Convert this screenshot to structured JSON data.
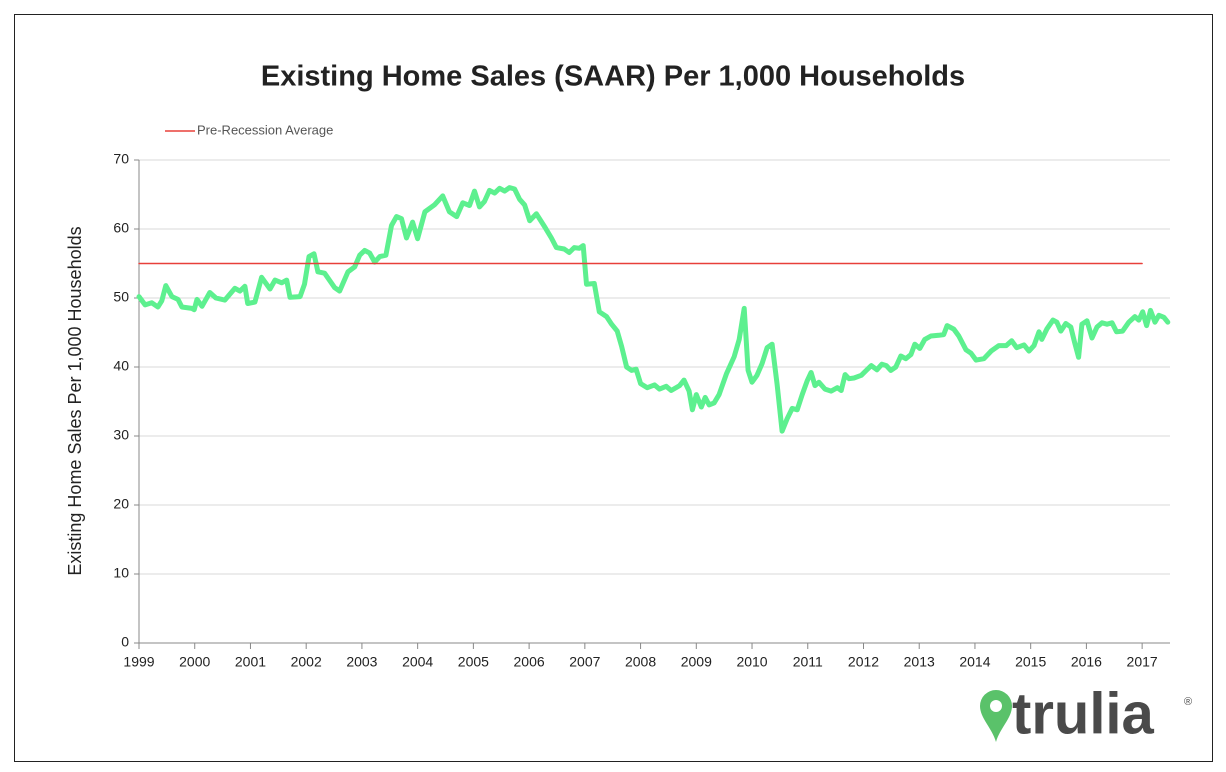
{
  "chart_data": {
    "type": "line",
    "title": "Existing Home Sales (SAAR) Per 1,000 Households",
    "y_label": "Existing Home Sales Per 1,000 Households",
    "xlim": [
      1999,
      2017.5
    ],
    "xticks": [
      1999,
      2000,
      2001,
      2002,
      2003,
      2004,
      2005,
      2006,
      2007,
      2008,
      2009,
      2010,
      2011,
      2012,
      2013,
      2014,
      2015,
      2016,
      2017
    ],
    "ylim": [
      0,
      70
    ],
    "yticks": [
      0,
      10,
      20,
      30,
      40,
      50,
      60,
      70
    ],
    "grid": true,
    "legend": "top-left",
    "series": [
      {
        "name": "Pre-Recession Average",
        "color": "#e8403a",
        "width": 1.5,
        "x": [
          1999,
          2017
        ],
        "values": [
          55,
          55
        ]
      },
      {
        "color": "#5df08f",
        "width": 5,
        "x": [
          1999.0,
          1999.11,
          1999.23,
          1999.34,
          1999.41,
          1999.48,
          1999.59,
          1999.7,
          1999.77,
          1999.95,
          1999.99,
          2000.04,
          2000.13,
          2000.27,
          2000.38,
          2000.54,
          2000.72,
          2000.81,
          2000.9,
          2000.95,
          2001.08,
          2001.2,
          2001.35,
          2001.44,
          2001.56,
          2001.65,
          2001.71,
          2001.89,
          2001.97,
          2002.05,
          2002.14,
          2002.21,
          2002.33,
          2002.51,
          2002.6,
          2002.75,
          2002.87,
          2002.96,
          2003.05,
          2003.14,
          2003.23,
          2003.32,
          2003.43,
          2003.53,
          2003.62,
          2003.71,
          2003.8,
          2003.91,
          2004.0,
          2004.13,
          2004.3,
          2004.45,
          2004.57,
          2004.7,
          2004.81,
          2004.93,
          2005.02,
          2005.11,
          2005.2,
          2005.29,
          2005.38,
          2005.47,
          2005.56,
          2005.65,
          2005.74,
          2005.83,
          2005.92,
          2006.01,
          2006.13,
          2006.28,
          2006.4,
          2006.49,
          2006.63,
          2006.72,
          2006.81,
          2006.9,
          2006.97,
          2007.03,
          2007.17,
          2007.26,
          2007.39,
          2007.48,
          2007.58,
          2007.66,
          2007.75,
          2007.84,
          2007.92,
          2008.0,
          2008.12,
          2008.25,
          2008.34,
          2008.46,
          2008.55,
          2008.7,
          2008.78,
          2008.87,
          2008.93,
          2009.0,
          2009.09,
          2009.16,
          2009.23,
          2009.32,
          2009.41,
          2009.54,
          2009.68,
          2009.77,
          2009.86,
          2009.93,
          2010.0,
          2010.09,
          2010.18,
          2010.27,
          2010.36,
          2010.45,
          2010.54,
          2010.63,
          2010.72,
          2010.81,
          2010.9,
          2010.99,
          2011.06,
          2011.13,
          2011.2,
          2011.31,
          2011.42,
          2011.53,
          2011.6,
          2011.67,
          2011.74,
          2011.83,
          2011.96,
          2012.05,
          2012.14,
          2012.24,
          2012.33,
          2012.41,
          2012.49,
          2012.58,
          2012.67,
          2012.76,
          2012.85,
          2012.92,
          2013.01,
          2013.1,
          2013.21,
          2013.35,
          2013.44,
          2013.5,
          2013.62,
          2013.71,
          2013.84,
          2013.93,
          2014.02,
          2014.16,
          2014.29,
          2014.43,
          2014.56,
          2014.66,
          2014.75,
          2014.88,
          2014.97,
          2015.06,
          2015.15,
          2015.2,
          2015.29,
          2015.4,
          2015.47,
          2015.54,
          2015.63,
          2015.72,
          2015.79,
          2015.86,
          2015.92,
          2016.01,
          2016.1,
          2016.19,
          2016.28,
          2016.37,
          2016.46,
          2016.54,
          2016.65,
          2016.76,
          2016.87,
          2016.94,
          2017.01,
          2017.08,
          2017.15,
          2017.23,
          2017.3,
          2017.39,
          2017.46
        ],
        "values": [
          50.2,
          49,
          49.3,
          48.7,
          49.6,
          51.8,
          50.2,
          49.8,
          48.7,
          48.5,
          48.3,
          49.8,
          48.8,
          50.8,
          50,
          49.7,
          51.4,
          51,
          51.7,
          49.2,
          49.4,
          53,
          51.3,
          52.6,
          52.2,
          52.6,
          50.1,
          50.2,
          52,
          56,
          56.4,
          53.8,
          53.6,
          51.5,
          51,
          53.8,
          54.5,
          56.2,
          56.9,
          56.5,
          55.2,
          56,
          56.2,
          60.5,
          61.8,
          61.5,
          58.7,
          61,
          58.6,
          62.5,
          63.5,
          64.8,
          62.5,
          61.8,
          63.8,
          63.4,
          65.5,
          63.2,
          64,
          65.6,
          65.2,
          65.9,
          65.5,
          66,
          65.8,
          64.3,
          63.5,
          61.2,
          62.2,
          60.3,
          58.7,
          57.3,
          57.1,
          56.6,
          57.3,
          57.2,
          57.6,
          52,
          52.1,
          48,
          47.3,
          46.2,
          45.2,
          43,
          40,
          39.5,
          39.7,
          37.6,
          37,
          37.4,
          36.8,
          37.2,
          36.6,
          37.3,
          38.1,
          36.5,
          33.8,
          36,
          34.2,
          35.6,
          34.5,
          34.8,
          36,
          39,
          41.5,
          44,
          48.5,
          39.5,
          37.8,
          38.8,
          40.5,
          42.8,
          43.3,
          37.5,
          30.7,
          32.5,
          34,
          33.8,
          36,
          38,
          39.2,
          37.3,
          37.8,
          36.8,
          36.5,
          37,
          36.6,
          38.9,
          38.3,
          38.4,
          38.8,
          39.5,
          40.2,
          39.6,
          40.4,
          40.2,
          39.5,
          40,
          41.6,
          41.2,
          41.8,
          43.3,
          42.7,
          44,
          44.5,
          44.6,
          44.7,
          46,
          45.5,
          44.5,
          42.5,
          42,
          41,
          41.2,
          42.3,
          43.1,
          43.1,
          43.8,
          42.8,
          43.2,
          42.3,
          43.1,
          45.1,
          44,
          45.5,
          46.8,
          46.5,
          45.2,
          46.3,
          45.8,
          43.5,
          41.4,
          46.2,
          46.7,
          44.2,
          45.8,
          46.4,
          46.2,
          46.4,
          45.1,
          45.2,
          46.5,
          47.3,
          46.8,
          48,
          46,
          48.2,
          46.5,
          47.5,
          47.2,
          46.5
        ]
      }
    ],
    "logo": "trulia",
    "logo_mark": "®"
  }
}
